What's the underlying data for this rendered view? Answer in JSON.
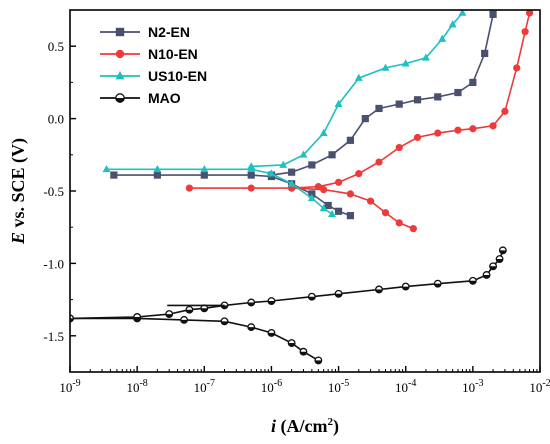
{
  "chart_data": {
    "type": "line",
    "xlabel": {
      "italic": "i",
      "rest": " (A/cm",
      "sup": "2",
      "close": ")"
    },
    "ylabel": {
      "italic": "E",
      "rest": " vs. SCE (V)"
    },
    "x_scale": "log",
    "xlim": [
      1e-09,
      0.01
    ],
    "ylim": [
      -1.75,
      0.75
    ],
    "x_ticks": [
      {
        "value": 1e-09,
        "base": "10",
        "exp": "-9"
      },
      {
        "value": 1e-08,
        "base": "10",
        "exp": "-8"
      },
      {
        "value": 1e-07,
        "base": "10",
        "exp": "-7"
      },
      {
        "value": 1e-06,
        "base": "10",
        "exp": "-6"
      },
      {
        "value": 1e-05,
        "base": "10",
        "exp": "-5"
      },
      {
        "value": 0.0001,
        "base": "10",
        "exp": "-4"
      },
      {
        "value": 0.001,
        "base": "10",
        "exp": "-3"
      },
      {
        "value": 0.01,
        "base": "10",
        "exp": "-2"
      }
    ],
    "y_ticks": [
      {
        "value": -1.5,
        "label": "-1.5"
      },
      {
        "value": -1.0,
        "label": "-1.0"
      },
      {
        "value": -0.5,
        "label": "-0.5"
      },
      {
        "value": 0.0,
        "label": "0.0"
      },
      {
        "value": 0.5,
        "label": "0.5"
      }
    ],
    "grid": false,
    "legend_position": "top-left",
    "series": [
      {
        "name": "N2-EN",
        "color": "#4a5070",
        "marker": "square",
        "cathodic": [
          [
            4.5e-09,
            -0.39
          ],
          [
            2e-08,
            -0.39
          ],
          [
            1e-07,
            -0.39
          ],
          [
            5e-07,
            -0.39
          ],
          [
            1e-06,
            -0.4
          ],
          [
            2e-06,
            -0.45
          ],
          [
            4e-06,
            -0.52
          ],
          [
            7e-06,
            -0.6
          ],
          [
            1e-05,
            -0.64
          ],
          [
            1.5e-05,
            -0.67
          ]
        ],
        "anodic": [
          [
            1e-06,
            -0.39
          ],
          [
            2e-06,
            -0.37
          ],
          [
            4e-06,
            -0.32
          ],
          [
            8e-06,
            -0.25
          ],
          [
            1.5e-05,
            -0.15
          ],
          [
            2.5e-05,
            0.0
          ],
          [
            4e-05,
            0.07
          ],
          [
            8e-05,
            0.1
          ],
          [
            0.00015,
            0.13
          ],
          [
            0.0003,
            0.15
          ],
          [
            0.0006,
            0.18
          ],
          [
            0.001,
            0.25
          ],
          [
            0.0015,
            0.45
          ],
          [
            0.002,
            0.72
          ]
        ]
      },
      {
        "name": "N10-EN",
        "color": "#ee3a3a",
        "marker": "circle",
        "cathodic": [
          [
            6e-08,
            -0.48
          ],
          [
            5e-07,
            -0.48
          ],
          [
            2e-06,
            -0.48
          ],
          [
            6e-06,
            -0.49
          ],
          [
            1.5e-05,
            -0.52
          ],
          [
            3e-05,
            -0.57
          ],
          [
            5e-05,
            -0.65
          ],
          [
            8e-05,
            -0.72
          ],
          [
            0.00013,
            -0.76
          ]
        ],
        "anodic": [
          [
            2e-06,
            -0.48
          ],
          [
            5e-06,
            -0.47
          ],
          [
            1e-05,
            -0.44
          ],
          [
            2e-05,
            -0.38
          ],
          [
            4e-05,
            -0.3
          ],
          [
            8e-05,
            -0.2
          ],
          [
            0.00015,
            -0.13
          ],
          [
            0.0003,
            -0.1
          ],
          [
            0.0006,
            -0.08
          ],
          [
            0.001,
            -0.07
          ],
          [
            0.002,
            -0.05
          ],
          [
            0.003,
            0.05
          ],
          [
            0.0045,
            0.35
          ],
          [
            0.006,
            0.6
          ],
          [
            0.007,
            0.73
          ]
        ]
      },
      {
        "name": "US10-EN",
        "color": "#21c0c0",
        "marker": "triangle",
        "cathodic": [
          [
            3.5e-09,
            -0.35
          ],
          [
            2e-08,
            -0.35
          ],
          [
            1e-07,
            -0.35
          ],
          [
            5e-07,
            -0.35
          ],
          [
            1e-06,
            -0.38
          ],
          [
            2e-06,
            -0.45
          ],
          [
            4e-06,
            -0.55
          ],
          [
            6e-06,
            -0.62
          ],
          [
            8e-06,
            -0.66
          ]
        ],
        "anodic": [
          [
            5e-07,
            -0.33
          ],
          [
            1.5e-06,
            -0.32
          ],
          [
            3e-06,
            -0.25
          ],
          [
            6e-06,
            -0.1
          ],
          [
            1e-05,
            0.1
          ],
          [
            2e-05,
            0.28
          ],
          [
            5e-05,
            0.35
          ],
          [
            0.0001,
            0.38
          ],
          [
            0.0002,
            0.42
          ],
          [
            0.00035,
            0.55
          ],
          [
            0.0005,
            0.65
          ],
          [
            0.0007,
            0.73
          ]
        ]
      },
      {
        "name": "MAO",
        "color": "#111111",
        "marker": "half-circle",
        "cathodic": [
          [
            1e-09,
            -1.38
          ],
          [
            1e-08,
            -1.38
          ],
          [
            5e-08,
            -1.39
          ],
          [
            2e-07,
            -1.4
          ],
          [
            5e-07,
            -1.44
          ],
          [
            1e-06,
            -1.48
          ],
          [
            2e-06,
            -1.55
          ],
          [
            3e-06,
            -1.61
          ],
          [
            5e-06,
            -1.67
          ]
        ],
        "anodic": [
          [
            1e-09,
            -1.38
          ],
          [
            1e-08,
            -1.37
          ],
          [
            3e-08,
            -1.35
          ],
          [
            6e-08,
            -1.32
          ],
          [
            1e-07,
            -1.31
          ],
          [
            2e-07,
            -1.29
          ],
          [
            5e-07,
            -1.27
          ],
          [
            1e-06,
            -1.26
          ],
          [
            4e-06,
            -1.23
          ],
          [
            1e-05,
            -1.21
          ],
          [
            4e-05,
            -1.18
          ],
          [
            0.0001,
            -1.16
          ],
          [
            0.0003,
            -1.14
          ],
          [
            0.001,
            -1.12
          ],
          [
            0.0016,
            -1.08
          ],
          [
            0.002,
            -1.02
          ],
          [
            0.0025,
            -0.97
          ],
          [
            0.0028,
            -0.91
          ]
        ],
        "passive_tail": [
          [
            2.8e-08,
            -1.29
          ],
          [
            2e-07,
            -1.29
          ]
        ]
      }
    ]
  }
}
